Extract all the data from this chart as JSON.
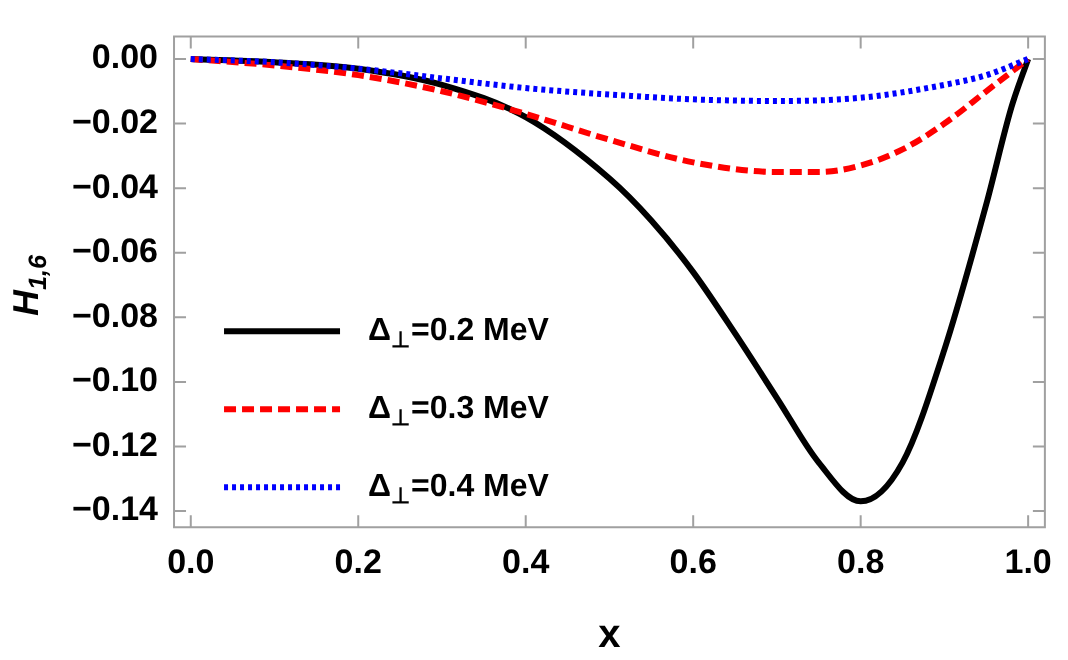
{
  "chart_data": {
    "type": "line",
    "xlabel": "x",
    "ylabel": "H$_{1,6}$",
    "xlim": [
      -0.02,
      1.02
    ],
    "ylim": [
      -0.145,
      0.007
    ],
    "xticks": [
      {
        "value": 0,
        "label": "0.0"
      },
      {
        "value": 0.2,
        "label": "0.2"
      },
      {
        "value": 0.4,
        "label": "0.4"
      },
      {
        "value": 0.6,
        "label": "0.6"
      },
      {
        "value": 0.8,
        "label": "0.8"
      },
      {
        "value": 1,
        "label": "1.0"
      }
    ],
    "yticks": [
      {
        "value": 0,
        "label": "0.00"
      },
      {
        "value": -0.02,
        "label": "−0.02"
      },
      {
        "value": -0.04,
        "label": "−0.04"
      },
      {
        "value": -0.06,
        "label": "−0.06"
      },
      {
        "value": -0.08,
        "label": "−0.08"
      },
      {
        "value": -0.1,
        "label": "−0.10"
      },
      {
        "value": -0.12,
        "label": "−0.12"
      },
      {
        "value": -0.14,
        "label": "−0.14"
      }
    ],
    "grid": false,
    "legend": "bottom left",
    "marker": "none",
    "series": [
      {
        "name": "Δ$_{⊥}$=0.2 MeV",
        "color": "#000000",
        "line_style": "solid",
        "x": [
          0,
          0.1,
          0.2,
          0.3,
          0.4,
          0.5,
          0.55,
          0.6,
          0.65,
          0.7,
          0.75,
          0.8,
          0.85,
          0.9,
          0.95,
          0.98,
          1
        ],
        "values": [
          0,
          -0.001,
          -0.003,
          -0.008,
          -0.018,
          -0.037,
          -0.05,
          -0.066,
          -0.085,
          -0.105,
          -0.125,
          -0.137,
          -0.125,
          -0.09,
          -0.045,
          -0.015,
          0
        ]
      },
      {
        "name": "Δ$_{⊥}$=0.3 MeV",
        "color": "#ff0000",
        "line_style": "dashed",
        "x": [
          0,
          0.1,
          0.2,
          0.3,
          0.4,
          0.5,
          0.6,
          0.7,
          0.75,
          0.8,
          0.85,
          0.9,
          0.95,
          1
        ],
        "values": [
          0,
          -0.002,
          -0.005,
          -0.01,
          -0.017,
          -0.025,
          -0.032,
          -0.035,
          -0.035,
          -0.033,
          -0.028,
          -0.02,
          -0.01,
          0
        ]
      },
      {
        "name": "Δ$_{⊥}$=0.4 MeV",
        "color": "#0000ff",
        "line_style": "dotted",
        "x": [
          0,
          0.1,
          0.2,
          0.3,
          0.4,
          0.5,
          0.6,
          0.7,
          0.8,
          0.9,
          0.95,
          1
        ],
        "values": [
          0,
          -0.001,
          -0.003,
          -0.006,
          -0.009,
          -0.011,
          -0.0125,
          -0.013,
          -0.012,
          -0.008,
          -0.005,
          0
        ]
      }
    ]
  }
}
